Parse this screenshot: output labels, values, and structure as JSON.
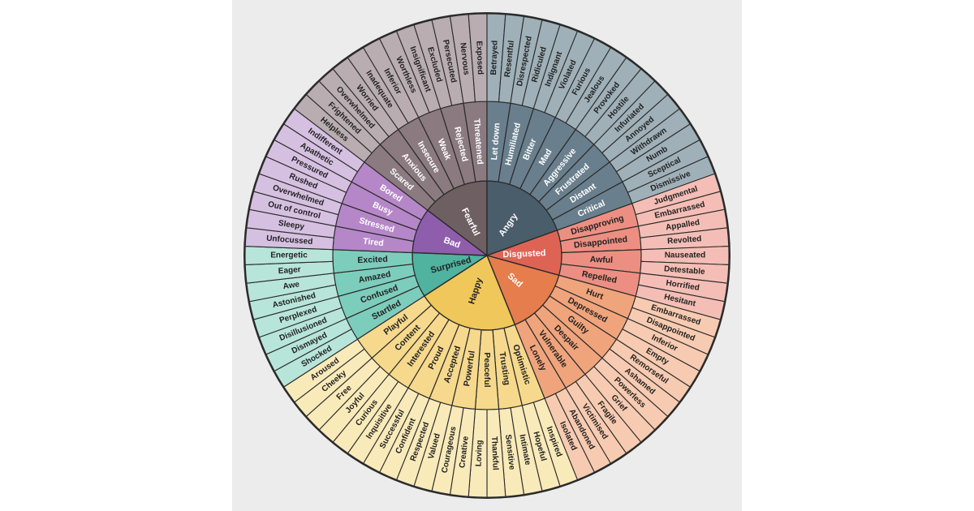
{
  "wheel": {
    "colors": {
      "Surprised": [
        "#4fb3a0",
        "#7dcdbc",
        "#b7e5da"
      ],
      "Bad": [
        "#8e5eac",
        "#b587c8",
        "#d6c0e1"
      ],
      "Fearful": [
        "#6e5f63",
        "#8b7b80",
        "#b9adb1"
      ],
      "Angry": [
        "#4a5d6b",
        "#6a7f8d",
        "#9fb0b8"
      ],
      "Disgusted": [
        "#dd6454",
        "#ec8f82",
        "#f4beb6"
      ],
      "Sad": [
        "#e67d4c",
        "#f0a47c",
        "#f7cbb1"
      ],
      "Happy": [
        "#f0c75a",
        "#f6d98c",
        "#f9eab9"
      ]
    },
    "emotions": [
      {
        "name": "Surprised",
        "groups": [
          {
            "name": "Startled",
            "words": [
              "Shocked",
              "Dismayed"
            ]
          },
          {
            "name": "Confused",
            "words": [
              "Disillusioned",
              "Perplexed"
            ]
          },
          {
            "name": "Amazed",
            "words": [
              "Astonished",
              "Awe"
            ]
          },
          {
            "name": "Excited",
            "words": [
              "Eager",
              "Energetic"
            ]
          }
        ]
      },
      {
        "name": "Bad",
        "groups": [
          {
            "name": "Tired",
            "words": [
              "Unfocussed",
              "Sleepy"
            ]
          },
          {
            "name": "Stressed",
            "words": [
              "Out of control",
              "Overwhelmed"
            ]
          },
          {
            "name": "Busy",
            "words": [
              "Rushed",
              "Pressured"
            ]
          },
          {
            "name": "Bored",
            "words": [
              "Apathetic",
              "Indifferent"
            ]
          }
        ]
      },
      {
        "name": "Fearful",
        "groups": [
          {
            "name": "Scared",
            "words": [
              "Helpless",
              "Frightened"
            ]
          },
          {
            "name": "Anxious",
            "words": [
              "Overwhelmed",
              "Worried"
            ]
          },
          {
            "name": "Insecure",
            "words": [
              "Inadequate",
              "Inferior"
            ]
          },
          {
            "name": "Weak",
            "words": [
              "Worthless",
              "Insignificant"
            ]
          },
          {
            "name": "Rejected",
            "words": [
              "Excluded",
              "Persecuted"
            ]
          },
          {
            "name": "Threatened",
            "words": [
              "Nervous",
              "Exposed"
            ]
          }
        ]
      },
      {
        "name": "Angry",
        "groups": [
          {
            "name": "Let down",
            "words": [
              "Betrayed",
              "Resentful"
            ]
          },
          {
            "name": "Humiliated",
            "words": [
              "Disrespected",
              "Ridiculed"
            ]
          },
          {
            "name": "Bitter",
            "words": [
              "Indignant",
              "Violated"
            ]
          },
          {
            "name": "Mad",
            "words": [
              "Furious",
              "Jealous"
            ]
          },
          {
            "name": "Aggressive",
            "words": [
              "Provoked",
              "Hostile"
            ]
          },
          {
            "name": "Frustrated",
            "words": [
              "Infuriated",
              "Annoyed"
            ]
          },
          {
            "name": "Distant",
            "words": [
              "Withdrawn",
              "Numb"
            ]
          },
          {
            "name": "Critical",
            "words": [
              "Sceptical",
              "Dismissive"
            ]
          }
        ]
      },
      {
        "name": "Disgusted",
        "groups": [
          {
            "name": "Disapproving",
            "words": [
              "Judgmental",
              "Embarrassed"
            ]
          },
          {
            "name": "Disappointed",
            "words": [
              "Appalled",
              "Revolted"
            ]
          },
          {
            "name": "Awful",
            "words": [
              "Nauseated",
              "Detestable"
            ]
          },
          {
            "name": "Repelled",
            "words": [
              "Horrified",
              "Hesitant"
            ]
          }
        ]
      },
      {
        "name": "Sad",
        "groups": [
          {
            "name": "Hurt",
            "words": [
              "Embarrassed",
              "Disappointed"
            ]
          },
          {
            "name": "Depressed",
            "words": [
              "Inferior",
              "Empty"
            ]
          },
          {
            "name": "Guilty",
            "words": [
              "Remorseful",
              "Ashamed"
            ]
          },
          {
            "name": "Despair",
            "words": [
              "Powerless",
              "Grief"
            ]
          },
          {
            "name": "Vulnerable",
            "words": [
              "Fragile",
              "Victimised"
            ]
          },
          {
            "name": "Lonely",
            "words": [
              "Abandoned",
              "Isolated"
            ]
          }
        ]
      },
      {
        "name": "Happy",
        "groups": [
          {
            "name": "Optimistic",
            "words": [
              "Inspired",
              "Hopeful"
            ]
          },
          {
            "name": "Trusting",
            "words": [
              "Intimate",
              "Sensitive"
            ]
          },
          {
            "name": "Peaceful",
            "words": [
              "Thankful",
              "Loving"
            ]
          },
          {
            "name": "Powerful",
            "words": [
              "Creative",
              "Courageous"
            ]
          },
          {
            "name": "Accepted",
            "words": [
              "Valued",
              "Respected"
            ]
          },
          {
            "name": "Proud",
            "words": [
              "Confident",
              "Successful"
            ]
          },
          {
            "name": "Interested",
            "words": [
              "Inquisitive",
              "Curious"
            ]
          },
          {
            "name": "Content",
            "words": [
              "Joyful",
              "Free"
            ]
          },
          {
            "name": "Playful",
            "words": [
              "Cheeky",
              "Aroused"
            ]
          }
        ]
      }
    ]
  }
}
